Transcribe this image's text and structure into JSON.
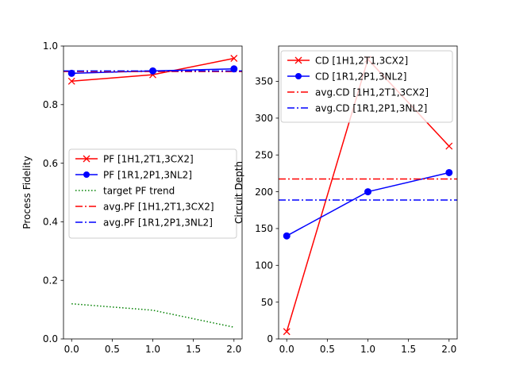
{
  "chart_data": [
    {
      "type": "line",
      "ylabel": "Process Fidelity",
      "xlabel": "",
      "xlim": [
        -0.1,
        2.1
      ],
      "ylim": [
        0.0,
        1.0
      ],
      "xticks": [
        0.0,
        0.5,
        1.0,
        1.5,
        2.0
      ],
      "xtick_labels": [
        "0.0",
        "0.5",
        "1.0",
        "1.5",
        "2.0"
      ],
      "yticks": [
        0.0,
        0.2,
        0.4,
        0.6,
        0.8,
        1.0
      ],
      "ytick_labels": [
        "0.0",
        "0.2",
        "0.4",
        "0.6",
        "0.8",
        "1.0"
      ],
      "legend_position": "center-right",
      "series": [
        {
          "name": "PF [1H1,2T1,3CX2]",
          "kind": "line",
          "marker": "x",
          "color": "#ff0000",
          "dash": "solid",
          "x": [
            0,
            1,
            2
          ],
          "y": [
            0.88,
            0.902,
            0.958
          ]
        },
        {
          "name": "PF [1R1,2P1,3NL2]",
          "kind": "line",
          "marker": "o",
          "color": "#0000ff",
          "dash": "solid",
          "x": [
            0,
            1,
            2
          ],
          "y": [
            0.907,
            0.915,
            0.922
          ]
        },
        {
          "name": "target PF trend",
          "kind": "line",
          "marker": "",
          "color": "#008000",
          "dash": "dotted",
          "x": [
            0,
            1,
            2
          ],
          "y": [
            0.12,
            0.098,
            0.04
          ]
        },
        {
          "name": "avg.PF [1H1,2T1,3CX2]",
          "kind": "hline",
          "marker": "",
          "color": "#ff0000",
          "dash": "dashdot",
          "y": 0.913
        },
        {
          "name": "avg.PF [1R1,2P1,3NL2]",
          "kind": "hline",
          "marker": "",
          "color": "#0000ff",
          "dash": "dashdot",
          "y": 0.915
        }
      ]
    },
    {
      "type": "line",
      "ylabel": "Circuit Depth",
      "xlabel": "",
      "xlim": [
        -0.1,
        2.1
      ],
      "ylim": [
        0,
        398
      ],
      "xticks": [
        0.0,
        0.5,
        1.0,
        1.5,
        2.0
      ],
      "xtick_labels": [
        "0.0",
        "0.5",
        "1.0",
        "1.5",
        "2.0"
      ],
      "yticks": [
        0,
        50,
        100,
        150,
        200,
        250,
        300,
        350
      ],
      "ytick_labels": [
        "0",
        "50",
        "100",
        "150",
        "200",
        "250",
        "300",
        "350"
      ],
      "legend_position": "upper-left",
      "series": [
        {
          "name": "CD [1H1,2T1,3CX2]",
          "kind": "line",
          "marker": "x",
          "color": "#ff0000",
          "dash": "solid",
          "x": [
            0,
            1,
            2
          ],
          "y": [
            10,
            380,
            262
          ]
        },
        {
          "name": "CD [1R1,2P1,3NL2]",
          "kind": "line",
          "marker": "o",
          "color": "#0000ff",
          "dash": "solid",
          "x": [
            0,
            1,
            2
          ],
          "y": [
            140,
            200,
            226
          ]
        },
        {
          "name": "avg.CD [1H1,2T1,3CX2]",
          "kind": "hline",
          "marker": "",
          "color": "#ff0000",
          "dash": "dashdot",
          "y": 217.3
        },
        {
          "name": "avg.CD [1R1,2P1,3NL2]",
          "kind": "hline",
          "marker": "",
          "color": "#0000ff",
          "dash": "dashdot",
          "y": 188.7
        }
      ]
    }
  ]
}
